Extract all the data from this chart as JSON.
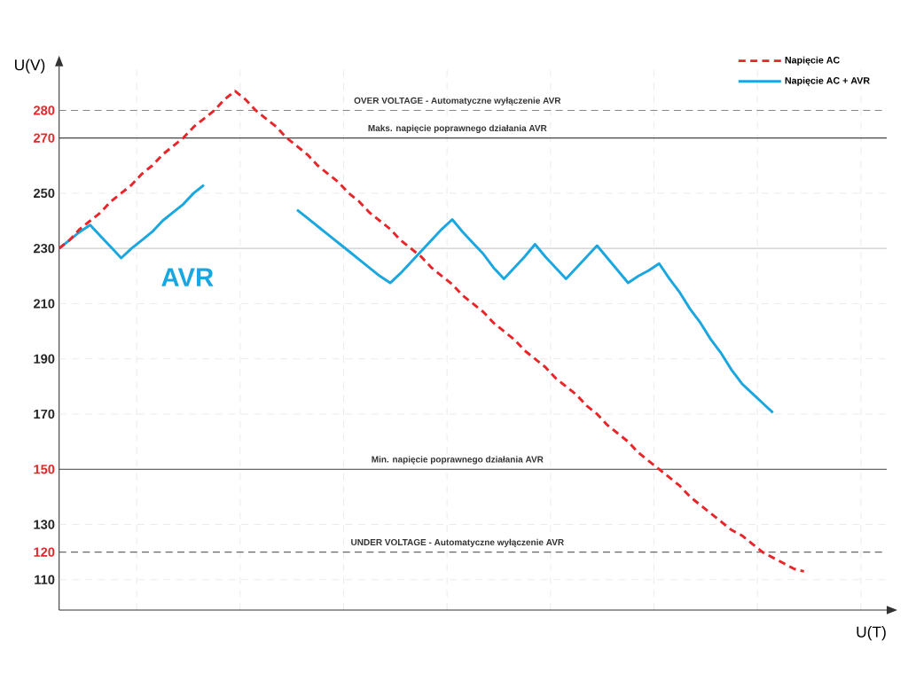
{
  "chart_data": {
    "type": "line",
    "xlabel": "U(T)",
    "ylabel": "U(V)",
    "categories": [
      null,
      null,
      null,
      null,
      null,
      null,
      null,
      null,
      null,
      null,
      null,
      null,
      null,
      null,
      null,
      null,
      null,
      null,
      null,
      null,
      null,
      null,
      null,
      null,
      null,
      null,
      null,
      null,
      null,
      null,
      null,
      null,
      null,
      null,
      null,
      null,
      null,
      null,
      null,
      null,
      null,
      null,
      null,
      null,
      null,
      null,
      null,
      null,
      null,
      null,
      null,
      null,
      null,
      null,
      null,
      null,
      null,
      null,
      null,
      null,
      null,
      null,
      null,
      null,
      null,
      null,
      null,
      null,
      null,
      null,
      null,
      null,
      null
    ],
    "ylim": [
      99,
      296
    ],
    "yticks": [
      110,
      120,
      130,
      150,
      170,
      190,
      210,
      230,
      250,
      270,
      280
    ],
    "grid": true,
    "legend": "top right",
    "series": [
      {
        "name": "Napięcie AC",
        "color": "#e8262a",
        "line_style": "dashed",
        "values": [
          230,
          233,
          237,
          240,
          243,
          247,
          250,
          253,
          257,
          260,
          264,
          267,
          270,
          274,
          277,
          280,
          284,
          287,
          284,
          280,
          277,
          274,
          270,
          267,
          264,
          260,
          257,
          254,
          250,
          247,
          243,
          240,
          237,
          233,
          230,
          227,
          223,
          220,
          217,
          213,
          210,
          207,
          203,
          200,
          197,
          193,
          190,
          187,
          183,
          180,
          177,
          173,
          170,
          166,
          163,
          160,
          156,
          153,
          150,
          147,
          144,
          140,
          137,
          134,
          131,
          128,
          126,
          123,
          120,
          118,
          116,
          114,
          113
        ]
      },
      {
        "name": "Napięcie AC + AVR",
        "color": "#1aa7e0",
        "line_style": "solid",
        "values": [
          230,
          233,
          236,
          238.5,
          234.5,
          230.5,
          226.5,
          230,
          233,
          236,
          240,
          243,
          246,
          250,
          253,
          null,
          null,
          null,
          null,
          null,
          null,
          null,
          null,
          244,
          241,
          238,
          235,
          232,
          229,
          226,
          223,
          220,
          217.5,
          221,
          225,
          229,
          233,
          237,
          240.5,
          236,
          232,
          228,
          223,
          219,
          223,
          227,
          231.5,
          227,
          223,
          219,
          223,
          227,
          231,
          226.5,
          222,
          217.5,
          220,
          222,
          224.5,
          219,
          214,
          208,
          203,
          197,
          192,
          186,
          181,
          177.5,
          174,
          170.5,
          null,
          null,
          null
        ]
      }
    ],
    "ref_lines": [
      {
        "axis": "y",
        "value": 280,
        "label": "OVER VOLTAGE - Automatyczne wyłączenie AVR",
        "color": "#888888",
        "line_style": "dashed"
      },
      {
        "axis": "y",
        "value": 270,
        "label": "Maks. napięcie poprawnego działania AVR",
        "color": "#444444",
        "line_style": "solid"
      },
      {
        "axis": "y",
        "value": 230,
        "color": "#cccccc",
        "line_style": "solid"
      },
      {
        "axis": "y",
        "value": 150,
        "label": "Min. napięcie poprawnego działania AVR",
        "color": "#3c3c3c",
        "line_style": "solid"
      },
      {
        "axis": "y",
        "value": 120,
        "label": "UNDER VOLTAGE - Automatyczne wyłączenie AVR",
        "color": "#666666",
        "line_style": "dashed"
      }
    ],
    "annotations": [
      "AVR"
    ]
  }
}
